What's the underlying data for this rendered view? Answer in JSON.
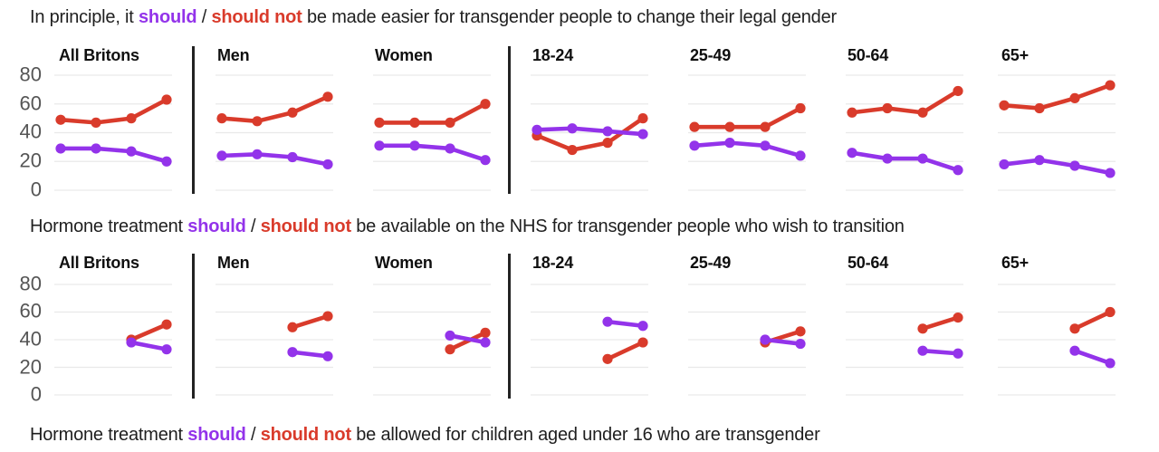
{
  "colors": {
    "should": "#9333ea",
    "should_not": "#d93b2b",
    "grid": "#e9e9e9",
    "divider": "#222222",
    "title": "#1f1f1f",
    "axis_label": "#555555",
    "header": "#0f0f0f",
    "background": "#ffffff"
  },
  "chart_data": [
    {
      "type": "line",
      "title": "In principle, it should / should not be made easier for transgender people to change their legal gender",
      "title_parts": {
        "prefix": "In principle, it ",
        "should": "should",
        "slash": " / ",
        "should_not": "should not",
        "suffix": " be made easier for transgender people to change their legal gender"
      },
      "ylim": [
        0,
        80
      ],
      "yticks": [
        0,
        20,
        40,
        60,
        80
      ],
      "x_waves": [
        1,
        2,
        3,
        4
      ],
      "grid": true,
      "legend": [
        {
          "name": "should",
          "color_key": "should"
        },
        {
          "name": "should not",
          "color_key": "should_not"
        }
      ],
      "panels": [
        {
          "label": "All Britons",
          "series": [
            {
              "name": "should not",
              "color_key": "should_not",
              "x": [
                1,
                2,
                3,
                4
              ],
              "values": [
                49,
                47,
                50,
                63
              ]
            },
            {
              "name": "should",
              "color_key": "should",
              "x": [
                1,
                2,
                3,
                4
              ],
              "values": [
                29,
                29,
                27,
                20
              ]
            }
          ]
        },
        {
          "label": "Men",
          "series": [
            {
              "name": "should not",
              "color_key": "should_not",
              "x": [
                1,
                2,
                3,
                4
              ],
              "values": [
                50,
                48,
                54,
                65
              ]
            },
            {
              "name": "should",
              "color_key": "should",
              "x": [
                1,
                2,
                3,
                4
              ],
              "values": [
                24,
                25,
                23,
                18
              ]
            }
          ]
        },
        {
          "label": "Women",
          "series": [
            {
              "name": "should not",
              "color_key": "should_not",
              "x": [
                1,
                2,
                3,
                4
              ],
              "values": [
                47,
                47,
                47,
                60
              ]
            },
            {
              "name": "should",
              "color_key": "should",
              "x": [
                1,
                2,
                3,
                4
              ],
              "values": [
                31,
                31,
                29,
                21
              ]
            }
          ]
        },
        {
          "label": "18-24",
          "series": [
            {
              "name": "should not",
              "color_key": "should_not",
              "x": [
                1,
                2,
                3,
                4
              ],
              "values": [
                38,
                28,
                33,
                50
              ]
            },
            {
              "name": "should",
              "color_key": "should",
              "x": [
                1,
                2,
                3,
                4
              ],
              "values": [
                42,
                43,
                41,
                39
              ]
            }
          ]
        },
        {
          "label": "25-49",
          "series": [
            {
              "name": "should not",
              "color_key": "should_not",
              "x": [
                1,
                2,
                3,
                4
              ],
              "values": [
                44,
                44,
                44,
                57
              ]
            },
            {
              "name": "should",
              "color_key": "should",
              "x": [
                1,
                2,
                3,
                4
              ],
              "values": [
                31,
                33,
                31,
                24
              ]
            }
          ]
        },
        {
          "label": "50-64",
          "series": [
            {
              "name": "should not",
              "color_key": "should_not",
              "x": [
                1,
                2,
                3,
                4
              ],
              "values": [
                54,
                57,
                54,
                69
              ]
            },
            {
              "name": "should",
              "color_key": "should",
              "x": [
                1,
                2,
                3,
                4
              ],
              "values": [
                26,
                22,
                22,
                14
              ]
            }
          ]
        },
        {
          "label": "65+",
          "series": [
            {
              "name": "should not",
              "color_key": "should_not",
              "x": [
                1,
                2,
                3,
                4
              ],
              "values": [
                59,
                57,
                64,
                73
              ]
            },
            {
              "name": "should",
              "color_key": "should",
              "x": [
                1,
                2,
                3,
                4
              ],
              "values": [
                18,
                21,
                17,
                12
              ]
            }
          ]
        }
      ]
    },
    {
      "type": "line",
      "title": "Hormone treatment should / should not be available on the NHS for transgender people who wish to transition",
      "title_parts": {
        "prefix": "Hormone treatment ",
        "should": "should",
        "slash": " / ",
        "should_not": "should not",
        "suffix": " be available on the NHS for transgender people who wish to transition"
      },
      "ylim": [
        0,
        80
      ],
      "yticks": [
        0,
        20,
        40,
        60,
        80
      ],
      "x_waves": [
        3,
        4
      ],
      "grid": true,
      "legend": [
        {
          "name": "should",
          "color_key": "should"
        },
        {
          "name": "should not",
          "color_key": "should_not"
        }
      ],
      "panels": [
        {
          "label": "All Britons",
          "series": [
            {
              "name": "should not",
              "color_key": "should_not",
              "x": [
                3,
                4
              ],
              "values": [
                40,
                51
              ]
            },
            {
              "name": "should",
              "color_key": "should",
              "x": [
                3,
                4
              ],
              "values": [
                38,
                33
              ]
            }
          ]
        },
        {
          "label": "Men",
          "series": [
            {
              "name": "should not",
              "color_key": "should_not",
              "x": [
                3,
                4
              ],
              "values": [
                49,
                57
              ]
            },
            {
              "name": "should",
              "color_key": "should",
              "x": [
                3,
                4
              ],
              "values": [
                31,
                28
              ]
            }
          ]
        },
        {
          "label": "Women",
          "series": [
            {
              "name": "should not",
              "color_key": "should_not",
              "x": [
                3,
                4
              ],
              "values": [
                33,
                45
              ]
            },
            {
              "name": "should",
              "color_key": "should",
              "x": [
                3,
                4
              ],
              "values": [
                43,
                38
              ]
            }
          ]
        },
        {
          "label": "18-24",
          "series": [
            {
              "name": "should not",
              "color_key": "should_not",
              "x": [
                3,
                4
              ],
              "values": [
                26,
                38
              ]
            },
            {
              "name": "should",
              "color_key": "should",
              "x": [
                3,
                4
              ],
              "values": [
                53,
                50
              ]
            }
          ]
        },
        {
          "label": "25-49",
          "series": [
            {
              "name": "should not",
              "color_key": "should_not",
              "x": [
                3,
                4
              ],
              "values": [
                38,
                46
              ]
            },
            {
              "name": "should",
              "color_key": "should",
              "x": [
                3,
                4
              ],
              "values": [
                40,
                37
              ]
            }
          ]
        },
        {
          "label": "50-64",
          "series": [
            {
              "name": "should not",
              "color_key": "should_not",
              "x": [
                3,
                4
              ],
              "values": [
                48,
                56
              ]
            },
            {
              "name": "should",
              "color_key": "should",
              "x": [
                3,
                4
              ],
              "values": [
                32,
                30
              ]
            }
          ]
        },
        {
          "label": "65+",
          "series": [
            {
              "name": "should not",
              "color_key": "should_not",
              "x": [
                3,
                4
              ],
              "values": [
                48,
                60
              ]
            },
            {
              "name": "should",
              "color_key": "should",
              "x": [
                3,
                4
              ],
              "values": [
                32,
                23
              ]
            }
          ]
        }
      ]
    },
    {
      "type": "line",
      "title": "Hormone treatment should / should not be allowed for children aged under 16 who are transgender",
      "title_parts": {
        "prefix": "Hormone treatment ",
        "should": "should",
        "slash": " / ",
        "should_not": "should not",
        "suffix": " be allowed for children aged under 16 who are transgender"
      },
      "panels": []
    }
  ]
}
